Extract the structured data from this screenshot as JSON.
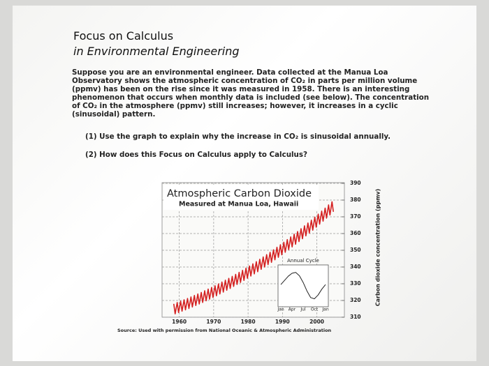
{
  "header": {
    "title": "Focus on Calculus",
    "subtitle": "in Environmental Engineering"
  },
  "body": {
    "paragraph": "Suppose you are an environmental engineer. Data collected at the Manua Loa Observatory shows the atmospheric concentration of CO₂ in parts per million volume (ppmv) has been on the rise since it was measured in 1958. There is an interesting phenomenon that occurs when monthly data is included (see below). The concentration of CO₂ in the atmosphere (ppmv) still increases; however, it increases in a cyclic (sinusoidal) pattern."
  },
  "questions": [
    "(1) Use the graph to explain why the increase in CO₂ is sinusoidal annually.",
    "(2) How does this Focus on Calculus apply to Calculus?"
  ],
  "chart_data": [
    {
      "type": "line",
      "title": "Atmospheric Carbon Dioxide",
      "subtitle": "Measured at Manua Loa, Hawaii",
      "y_axis_label": "Carbon dioxide concentration (ppmv)",
      "color": "#d42020",
      "grid": true,
      "xlim": [
        1955,
        2008
      ],
      "xticks": [
        1960,
        1970,
        1980,
        1990,
        2000
      ],
      "ylim": [
        310,
        390
      ],
      "yticks": [
        310,
        320,
        330,
        340,
        350,
        360,
        370,
        380,
        390
      ],
      "x": [
        1958.4,
        1958.8,
        1959.4,
        1959.8,
        1960.4,
        1960.8,
        1961.4,
        1961.8,
        1962.4,
        1962.8,
        1963.4,
        1963.8,
        1964.4,
        1964.8,
        1965.4,
        1965.8,
        1966.4,
        1966.8,
        1967.4,
        1967.8,
        1968.4,
        1968.8,
        1969.4,
        1969.8,
        1970.4,
        1970.8,
        1971.4,
        1971.8,
        1972.4,
        1972.8,
        1973.4,
        1973.8,
        1974.4,
        1974.8,
        1975.4,
        1975.8,
        1976.4,
        1976.8,
        1977.4,
        1977.8,
        1978.4,
        1978.8,
        1979.4,
        1979.8,
        1980.4,
        1980.8,
        1981.4,
        1981.8,
        1982.4,
        1982.8,
        1983.4,
        1983.8,
        1984.4,
        1984.8,
        1985.4,
        1985.8,
        1986.4,
        1986.8,
        1987.4,
        1987.8,
        1988.4,
        1988.8,
        1989.4,
        1989.8,
        1990.4,
        1990.8,
        1991.4,
        1991.8,
        1992.4,
        1992.8,
        1993.4,
        1993.8,
        1994.4,
        1994.8,
        1995.4,
        1995.8,
        1996.4,
        1996.8,
        1997.4,
        1997.8,
        1998.4,
        1998.8,
        1999.4,
        1999.8,
        2000.4,
        2000.8,
        2001.4,
        2001.8,
        2002.4,
        2002.8,
        2003.4,
        2003.8,
        2004.4,
        2004.8
      ],
      "values": [
        318,
        312,
        318.8,
        312.8,
        319.6,
        313.6,
        320.4,
        314.4,
        321.2,
        315.2,
        322.1,
        316.1,
        323,
        317,
        323.9,
        317.9,
        324.8,
        318.8,
        325.8,
        319.8,
        326.8,
        320.8,
        327.8,
        321.8,
        328.8,
        322.8,
        329.9,
        323.9,
        331,
        325,
        332.1,
        326.1,
        333.2,
        327.2,
        334.4,
        328.4,
        335.6,
        329.6,
        336.8,
        330.8,
        338,
        332,
        339.3,
        333.3,
        340.6,
        334.6,
        341.9,
        335.9,
        343.2,
        337.2,
        344.6,
        338.6,
        346,
        340,
        347.4,
        341.4,
        348.8,
        342.8,
        350.3,
        344.3,
        351.8,
        345.8,
        353.3,
        347.3,
        354.8,
        348.8,
        356.4,
        350.4,
        358,
        352,
        359.6,
        353.6,
        361.2,
        355.2,
        362.9,
        356.9,
        364.6,
        358.6,
        366.3,
        360.3,
        368,
        362,
        369.8,
        363.8,
        371.6,
        365.6,
        373.4,
        367.4,
        375.2,
        369.2,
        377.1,
        371.1,
        379,
        373
      ]
    },
    {
      "type": "line",
      "title": "Annual Cycle",
      "color": "#222222",
      "xlim": [
        0,
        12
      ],
      "xticks": [
        {
          "value": 0,
          "label": "Jan"
        },
        {
          "value": 3,
          "label": "Apr"
        },
        {
          "value": 6,
          "label": "Jul"
        },
        {
          "value": 9,
          "label": "Oct"
        },
        {
          "value": 12,
          "label": "Jan"
        }
      ],
      "ylim": [
        -4,
        4
      ],
      "x": [
        0,
        1,
        2,
        3,
        4,
        5,
        6,
        7,
        8,
        9,
        10,
        11,
        12
      ],
      "values": [
        0.3,
        1.3,
        2.3,
        3,
        3.2,
        2.4,
        0.8,
        -1.2,
        -2.8,
        -3.1,
        -2.2,
        -0.8,
        0.3
      ]
    }
  ],
  "source": "Source: Used with permission from National Oceanic & Atmospheric Administration"
}
